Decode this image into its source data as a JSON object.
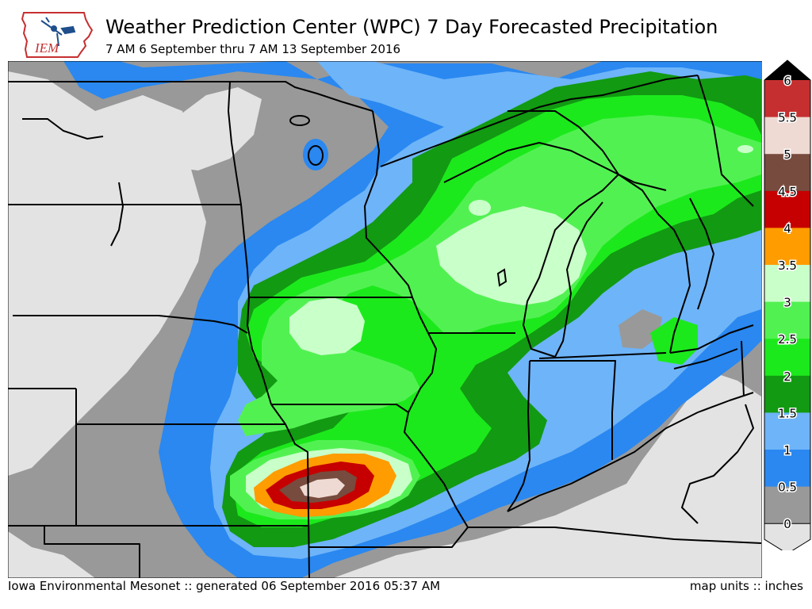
{
  "header": {
    "logo_text": "IEM",
    "title": "Weather Prediction Center (WPC) 7 Day Forecasted Precipitation",
    "subtitle": "7 AM 6 September thru 7 AM 13 September 2016"
  },
  "footer": {
    "left": "Iowa Environmental Mesonet :: generated 06 September 2016 05:37 AM",
    "right": "map units :: inches"
  },
  "legend": {
    "levels": [
      "6",
      "5.5",
      "5",
      "4.5",
      "4",
      "3.5",
      "3",
      "2.5",
      "2",
      "1.5",
      "1",
      "0.5",
      "0"
    ],
    "colors": [
      "#000000",
      "#c62f30",
      "#eedad2",
      "#774b3e",
      "#c60000",
      "#ff9c00",
      "#c9ffc9",
      "#52f152",
      "#1ce91c",
      "#129a12",
      "#6eb4f8",
      "#2a88f0",
      "#999999",
      "#e3e3e3"
    ]
  },
  "map": {
    "palette": {
      "none": "#e3e3e3",
      "p05": "#999999",
      "p1": "#2a88f0",
      "p15": "#6eb4f8",
      "p2": "#129a12",
      "p25": "#1ce91c",
      "p3": "#52f152",
      "p35": "#c9ffc9",
      "p4": "#ff9c00",
      "p45": "#c60000",
      "p5": "#774b3e",
      "p55": "#eedad2"
    }
  }
}
